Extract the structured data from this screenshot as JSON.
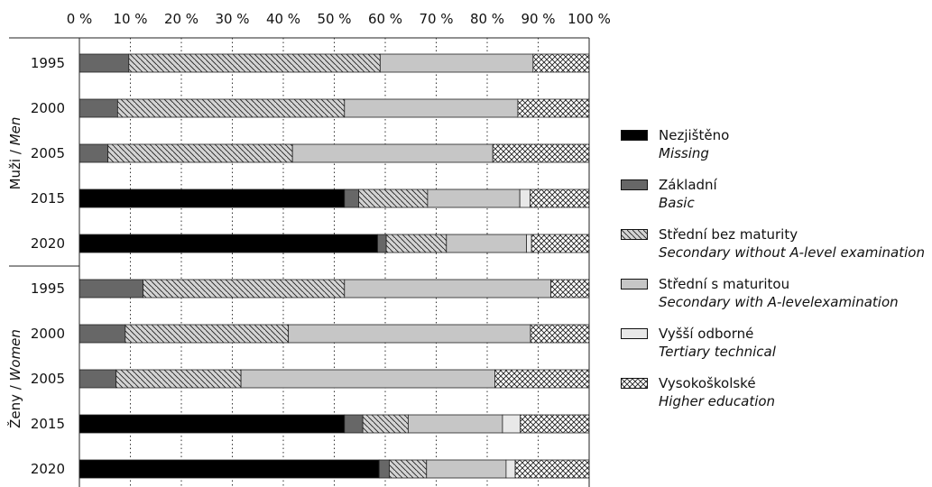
{
  "chart_data": {
    "type": "bar",
    "orientation": "horizontal",
    "stacked": true,
    "xlim": [
      0,
      100
    ],
    "x_ticks": [
      "0 %",
      "10 %",
      "20 %",
      "30 %",
      "40 %",
      "50 %",
      "60 %",
      "70 %",
      "80 %",
      "90 %",
      "100 %"
    ],
    "grid": "vertical dotted",
    "groups": [
      {
        "label": "Muži / ",
        "label_italic": "Men",
        "rows": [
          "1995",
          "2000",
          "2005",
          "2015",
          "2020"
        ]
      },
      {
        "label": "Ženy / ",
        "label_italic": "Women",
        "rows": [
          "1995",
          "2000",
          "2005",
          "2015",
          "2020"
        ]
      }
    ],
    "categories": [
      "1995",
      "2000",
      "2005",
      "2015",
      "2020",
      "1995",
      "2000",
      "2005",
      "2015",
      "2020"
    ],
    "series": [
      {
        "name": "Nezjištěno",
        "name_en": "Missing",
        "pattern": "solid-black",
        "values": [
          0,
          0,
          0,
          52,
          58.5,
          0,
          0,
          0,
          52,
          58.8
        ]
      },
      {
        "name": "Základní",
        "name_en": "Basic",
        "pattern": "solid-gray",
        "values": [
          9.7,
          7.5,
          5.6,
          2.8,
          1.7,
          12.5,
          9,
          7.2,
          3.6,
          2
        ]
      },
      {
        "name": "Střední bez maturity",
        "name_en": "Secondary without A-level examination",
        "pattern": "diagonal",
        "values": [
          49.3,
          44.5,
          36.2,
          13.5,
          11.8,
          39.5,
          32,
          24.5,
          8.9,
          7.3
        ]
      },
      {
        "name": "Střední s maturitou",
        "name_en": "Secondary with A-levelexamination",
        "pattern": "light-gray",
        "values": [
          30,
          34,
          39.3,
          18.1,
          15.7,
          40.5,
          47.5,
          49.8,
          18.5,
          15.6
        ]
      },
      {
        "name": "Vyšší odborné",
        "name_en": "Tertiary technical",
        "pattern": "very-light",
        "values": [
          0,
          0,
          0,
          2,
          1,
          0,
          0,
          0,
          3.5,
          1.8
        ]
      },
      {
        "name": "Vysokoškolské",
        "name_en": "Higher education",
        "pattern": "crosshatch",
        "values": [
          11,
          14,
          18.9,
          11.6,
          11.3,
          7.5,
          11.5,
          18.5,
          13.5,
          14.5
        ]
      }
    ],
    "legend_position": "right"
  }
}
